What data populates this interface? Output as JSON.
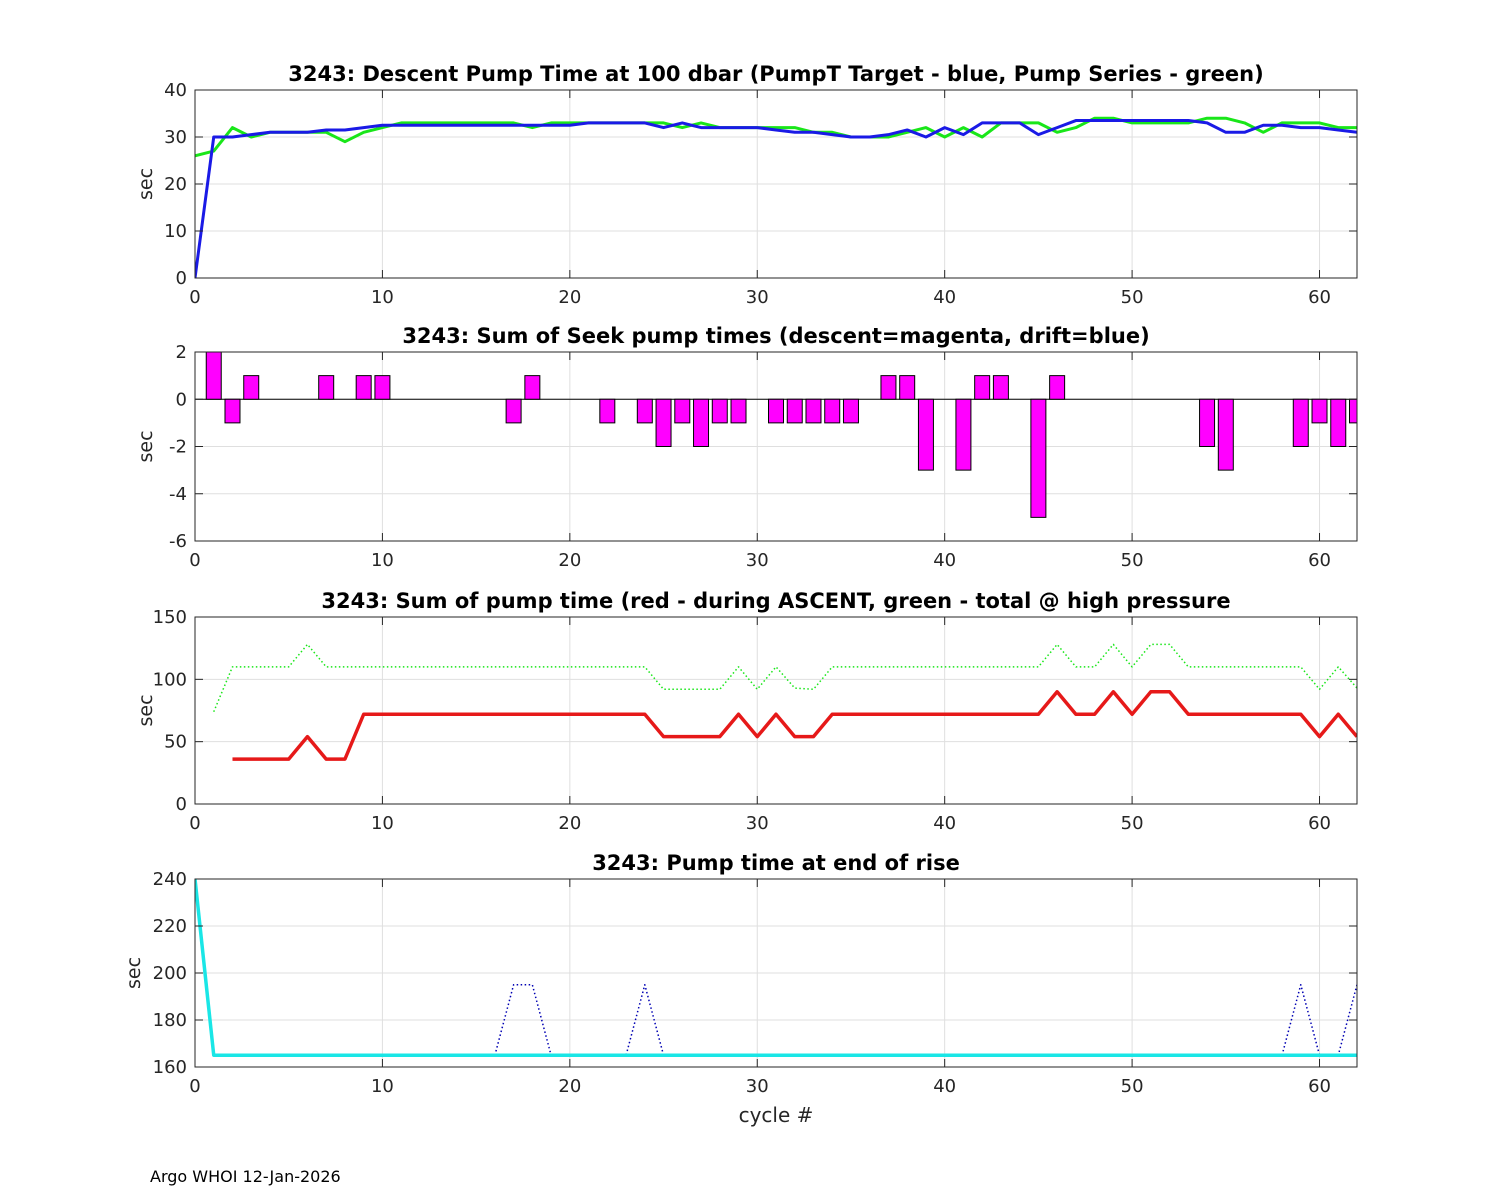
{
  "footer": "Argo WHOI 12-Jan-2026",
  "chart_data": [
    {
      "type": "line",
      "title": "3243: Descent Pump Time at 100 dbar (PumpT Target - blue, Pump Series - green)",
      "xlabel": "",
      "ylabel": "sec",
      "xlim": [
        0,
        62
      ],
      "ylim": [
        0,
        40
      ],
      "xticks": [
        0,
        10,
        20,
        30,
        40,
        50,
        60
      ],
      "yticks": [
        0,
        10,
        20,
        30,
        40
      ],
      "grid": true,
      "series": [
        {
          "name": "Pump Series",
          "color": "#19e619",
          "style": "solid",
          "width": 3,
          "x": [
            0,
            1,
            2,
            3,
            4,
            5,
            6,
            7,
            8,
            9,
            10,
            11,
            12,
            13,
            14,
            15,
            16,
            17,
            18,
            19,
            20,
            21,
            22,
            23,
            24,
            25,
            26,
            27,
            28,
            29,
            30,
            31,
            32,
            33,
            34,
            35,
            36,
            37,
            38,
            39,
            40,
            41,
            42,
            43,
            44,
            45,
            46,
            47,
            48,
            49,
            50,
            51,
            52,
            53,
            54,
            55,
            56,
            57,
            58,
            59,
            60,
            61,
            62
          ],
          "y": [
            26,
            27,
            32,
            30,
            31,
            31,
            31,
            31,
            29,
            31,
            32,
            33,
            33,
            33,
            33,
            33,
            33,
            33,
            32,
            33,
            33,
            33,
            33,
            33,
            33,
            33,
            32,
            33,
            32,
            32,
            32,
            32,
            32,
            31,
            31,
            30,
            30,
            30,
            31,
            32,
            30,
            32,
            30,
            33,
            33,
            33,
            31,
            32,
            34,
            34,
            33,
            33,
            33,
            33,
            34,
            34,
            33,
            31,
            33,
            33,
            33,
            32,
            32
          ]
        },
        {
          "name": "PumpT Target",
          "color": "#1a1ae6",
          "style": "solid",
          "width": 3,
          "x": [
            0,
            1,
            2,
            3,
            4,
            5,
            6,
            7,
            8,
            9,
            10,
            11,
            12,
            13,
            14,
            15,
            16,
            17,
            18,
            19,
            20,
            21,
            22,
            23,
            24,
            25,
            26,
            27,
            28,
            29,
            30,
            31,
            32,
            33,
            34,
            35,
            36,
            37,
            38,
            39,
            40,
            41,
            42,
            43,
            44,
            45,
            46,
            47,
            48,
            49,
            50,
            51,
            52,
            53,
            54,
            55,
            56,
            57,
            58,
            59,
            60,
            61,
            62
          ],
          "y": [
            0,
            30,
            30,
            30.5,
            31,
            31,
            31,
            31.5,
            31.5,
            32,
            32.5,
            32.5,
            32.5,
            32.5,
            32.5,
            32.5,
            32.5,
            32.5,
            32.5,
            32.5,
            32.5,
            33,
            33,
            33,
            33,
            32,
            33,
            32,
            32,
            32,
            32,
            31.5,
            31,
            31,
            30.5,
            30,
            30,
            30.5,
            31.5,
            30,
            32,
            30.5,
            33,
            33,
            33,
            30.5,
            32,
            33.5,
            33.5,
            33.5,
            33.5,
            33.5,
            33.5,
            33.5,
            33,
            31,
            31,
            32.5,
            32.5,
            32,
            32,
            31.5,
            31
          ]
        }
      ]
    },
    {
      "type": "bar",
      "title": "3243: Sum of Seek pump times (descent=magenta, drift=blue)",
      "xlabel": "",
      "ylabel": "sec",
      "xlim": [
        0,
        62
      ],
      "ylim": [
        -6,
        2
      ],
      "xticks": [
        0,
        10,
        20,
        30,
        40,
        50,
        60
      ],
      "yticks": [
        -6,
        -4,
        -2,
        0,
        2
      ],
      "grid": true,
      "bar_color": "#ff00ff",
      "x": [
        1,
        2,
        3,
        7,
        9,
        10,
        17,
        18,
        22,
        24,
        25,
        26,
        27,
        28,
        29,
        31,
        32,
        33,
        34,
        35,
        37,
        38,
        39,
        41,
        42,
        43,
        45,
        46,
        54,
        55,
        59,
        60,
        61,
        62
      ],
      "values": [
        2,
        -1,
        1,
        1,
        1,
        1,
        -1,
        1,
        -1,
        -1,
        -2,
        -1,
        -2,
        -1,
        -1,
        -1,
        -1,
        -1,
        -1,
        -1,
        1,
        1,
        -3,
        -3,
        1,
        1,
        -5,
        1,
        -2,
        -3,
        -2,
        -1,
        -2,
        -1
      ]
    },
    {
      "type": "line",
      "title": "3243: Sum of pump time (red - during ASCENT, green - total @ high pressure",
      "xlabel": "",
      "ylabel": "sec",
      "xlim": [
        0,
        62
      ],
      "ylim": [
        0,
        150
      ],
      "xticks": [
        0,
        10,
        20,
        30,
        40,
        50,
        60
      ],
      "yticks": [
        0,
        50,
        100,
        150
      ],
      "grid": true,
      "series": [
        {
          "name": "total @ high pressure",
          "color": "#19e619",
          "style": "dotted",
          "width": 1.5,
          "x": [
            1,
            2,
            3,
            4,
            5,
            6,
            7,
            8,
            9,
            10,
            11,
            12,
            13,
            14,
            15,
            16,
            17,
            18,
            19,
            20,
            21,
            22,
            23,
            24,
            25,
            26,
            27,
            28,
            29,
            30,
            31,
            32,
            33,
            34,
            35,
            36,
            37,
            38,
            39,
            40,
            41,
            42,
            43,
            44,
            45,
            46,
            47,
            48,
            49,
            50,
            51,
            52,
            53,
            54,
            55,
            56,
            57,
            58,
            59,
            60,
            61,
            62
          ],
          "y": [
            74,
            110,
            110,
            110,
            110,
            128,
            110,
            110,
            110,
            110,
            110,
            110,
            110,
            110,
            110,
            110,
            110,
            110,
            110,
            110,
            110,
            110,
            110,
            110,
            92,
            92,
            92,
            92,
            110,
            92,
            110,
            93,
            92,
            110,
            110,
            110,
            110,
            110,
            110,
            110,
            110,
            110,
            110,
            110,
            110,
            128,
            110,
            110,
            128,
            110,
            128,
            128,
            110,
            110,
            110,
            110,
            110,
            110,
            110,
            92,
            110,
            93
          ]
        },
        {
          "name": "during ASCENT",
          "color": "#e61919",
          "style": "solid",
          "width": 3.5,
          "x": [
            2,
            3,
            4,
            5,
            6,
            7,
            8,
            9,
            10,
            11,
            12,
            13,
            14,
            15,
            16,
            17,
            18,
            19,
            20,
            21,
            22,
            23,
            24,
            25,
            26,
            27,
            28,
            29,
            30,
            31,
            32,
            33,
            34,
            35,
            36,
            37,
            38,
            39,
            40,
            41,
            42,
            43,
            44,
            45,
            46,
            47,
            48,
            49,
            50,
            51,
            52,
            53,
            54,
            55,
            56,
            57,
            58,
            59,
            60,
            61,
            62
          ],
          "y": [
            36,
            36,
            36,
            36,
            54,
            36,
            36,
            72,
            72,
            72,
            72,
            72,
            72,
            72,
            72,
            72,
            72,
            72,
            72,
            72,
            72,
            72,
            72,
            54,
            54,
            54,
            54,
            72,
            54,
            72,
            54,
            54,
            72,
            72,
            72,
            72,
            72,
            72,
            72,
            72,
            72,
            72,
            72,
            72,
            90,
            72,
            72,
            90,
            72,
            90,
            90,
            72,
            72,
            72,
            72,
            72,
            72,
            72,
            54,
            72,
            54
          ]
        }
      ]
    },
    {
      "type": "line",
      "title": "3243: Pump time at end of rise",
      "xlabel": "cycle #",
      "ylabel": "sec",
      "xlim": [
        0,
        62
      ],
      "ylim": [
        160,
        240
      ],
      "xticks": [
        0,
        10,
        20,
        30,
        40,
        50,
        60
      ],
      "yticks": [
        160,
        180,
        200,
        220,
        240
      ],
      "grid": true,
      "series": [
        {
          "name": "blue dotted",
          "color": "#0000b3",
          "style": "dotted",
          "width": 1.5,
          "x": [
            16,
            17,
            18,
            19,
            23,
            24,
            25,
            58,
            59,
            60,
            61,
            62
          ],
          "y": [
            165,
            195,
            195,
            165,
            165,
            195,
            165,
            165,
            195,
            165,
            165,
            195
          ]
        },
        {
          "name": "cyan",
          "color": "#19e6e6",
          "style": "solid",
          "width": 3.5,
          "x": [
            0,
            1,
            62
          ],
          "y": [
            240,
            165,
            165
          ]
        }
      ]
    }
  ]
}
